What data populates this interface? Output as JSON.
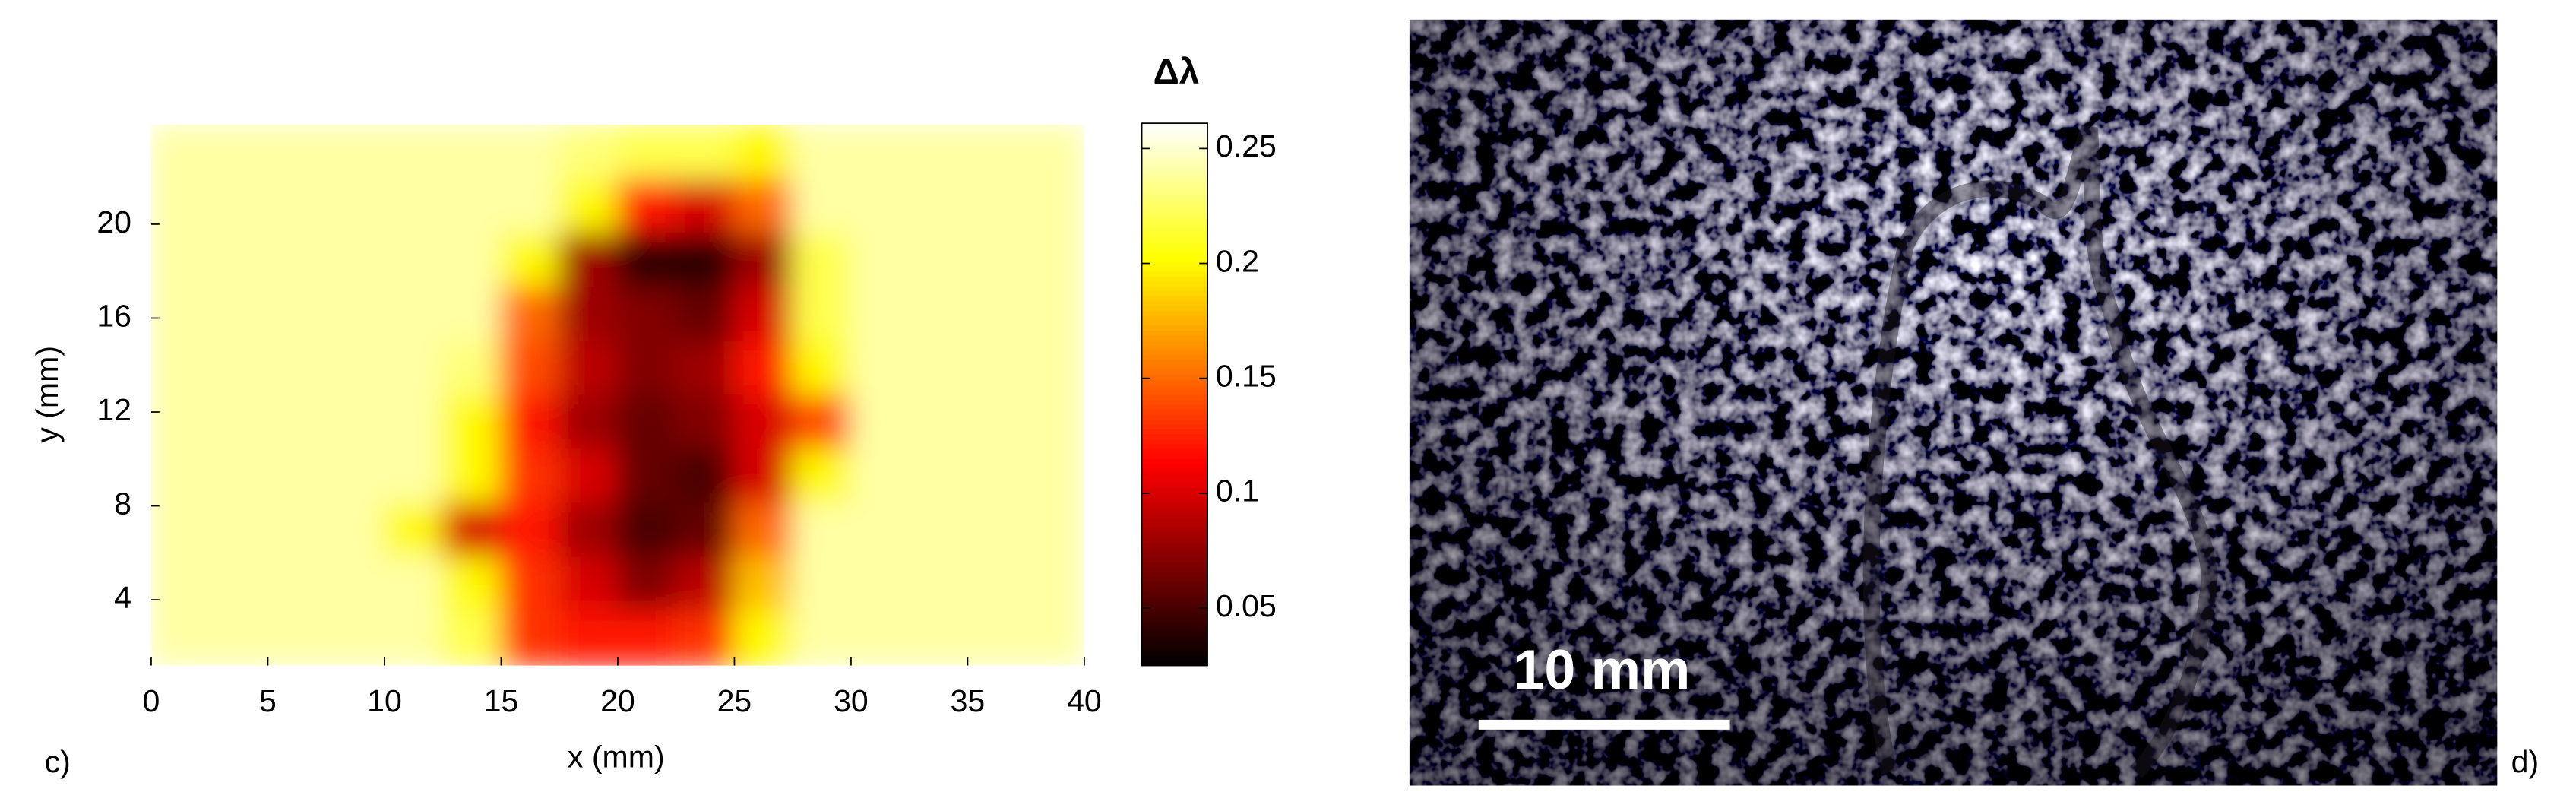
{
  "chart_data": {
    "type": "heatmap",
    "panel_label": "c)",
    "x_label": "x (mm)",
    "y_label": "y (mm)",
    "colorbar_label": "Δλ",
    "colormap": "hot",
    "xlim": [
      0,
      40
    ],
    "ylim": [
      1.2,
      24.3
    ],
    "xticks": [
      0,
      5,
      10,
      15,
      20,
      25,
      30,
      35,
      40
    ],
    "yticks": [
      4,
      8,
      12,
      16,
      20
    ],
    "clim": [
      0.025,
      0.261
    ],
    "cticks": [
      0.05,
      0.1,
      0.15,
      0.2,
      0.25
    ],
    "x": [
      1.25,
      3.75,
      6.25,
      8.75,
      11.25,
      13.75,
      16.25,
      18.75,
      21.25,
      23.75,
      26.25,
      28.75,
      31.25,
      33.75,
      36.25,
      38.75
    ],
    "y": [
      23.05,
      20.75,
      18.45,
      16.15,
      13.85,
      11.55,
      9.25,
      6.95,
      4.65,
      2.35
    ],
    "z": [
      [
        0.24,
        0.24,
        0.24,
        0.24,
        0.24,
        0.24,
        0.24,
        0.23,
        0.22,
        0.22,
        0.2,
        0.24,
        0.24,
        0.24,
        0.24,
        0.24
      ],
      [
        0.24,
        0.24,
        0.24,
        0.24,
        0.24,
        0.24,
        0.24,
        0.2,
        0.12,
        0.1,
        0.15,
        0.24,
        0.24,
        0.24,
        0.24,
        0.24
      ],
      [
        0.24,
        0.24,
        0.24,
        0.24,
        0.24,
        0.24,
        0.2,
        0.08,
        0.04,
        0.04,
        0.08,
        0.22,
        0.24,
        0.24,
        0.24,
        0.24
      ],
      [
        0.24,
        0.24,
        0.24,
        0.24,
        0.24,
        0.24,
        0.15,
        0.08,
        0.07,
        0.06,
        0.1,
        0.22,
        0.24,
        0.24,
        0.24,
        0.24
      ],
      [
        0.24,
        0.24,
        0.24,
        0.24,
        0.24,
        0.23,
        0.14,
        0.09,
        0.07,
        0.08,
        0.12,
        0.2,
        0.24,
        0.24,
        0.24,
        0.24
      ],
      [
        0.24,
        0.24,
        0.24,
        0.24,
        0.24,
        0.2,
        0.12,
        0.08,
        0.06,
        0.07,
        0.1,
        0.14,
        0.24,
        0.24,
        0.24,
        0.24
      ],
      [
        0.24,
        0.24,
        0.24,
        0.24,
        0.24,
        0.2,
        0.13,
        0.1,
        0.06,
        0.05,
        0.1,
        0.2,
        0.24,
        0.24,
        0.24,
        0.24
      ],
      [
        0.24,
        0.24,
        0.24,
        0.24,
        0.2,
        0.1,
        0.12,
        0.08,
        0.05,
        0.06,
        0.15,
        0.24,
        0.24,
        0.24,
        0.24,
        0.24
      ],
      [
        0.24,
        0.24,
        0.24,
        0.24,
        0.24,
        0.2,
        0.13,
        0.1,
        0.07,
        0.09,
        0.18,
        0.24,
        0.24,
        0.24,
        0.24,
        0.24
      ],
      [
        0.24,
        0.24,
        0.24,
        0.24,
        0.24,
        0.22,
        0.13,
        0.12,
        0.12,
        0.13,
        0.2,
        0.24,
        0.24,
        0.24,
        0.24,
        0.24
      ]
    ]
  },
  "photo": {
    "scale_bar_label": "10 mm",
    "panel_label": "d)"
  }
}
